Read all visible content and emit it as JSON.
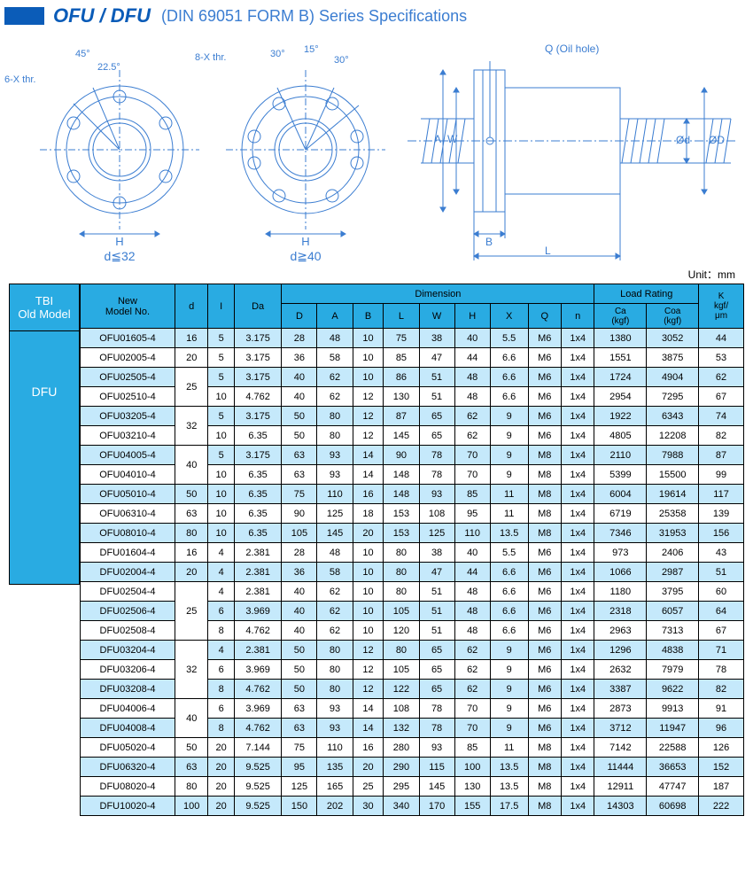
{
  "header": {
    "title_main": "OFU / DFU",
    "title_sub": "(DIN 69051 FORM B) Series Specifications"
  },
  "diagram_labels": {
    "left": "d≦32",
    "mid": "d≧40",
    "thr_left": "6-X thr.",
    "thr_mid": "8-X thr.",
    "oil": "Q (Oil hole)",
    "angles": {
      "a45": "45°",
      "a225": "22.5°",
      "a30l": "30°",
      "a15": "15°",
      "a30r": "30°"
    },
    "dims": {
      "H": "H",
      "A": "A",
      "W": "W",
      "B": "B",
      "L": "L",
      "od": "Ød",
      "oD": "ØD"
    }
  },
  "unit": "Unit：mm",
  "sidebar": {
    "head1": "TBI",
    "head2": "Old Model",
    "body": "DFU"
  },
  "columns": {
    "model": "New\nModel No.",
    "d": "d",
    "I": "I",
    "Da": "Da",
    "dim": "Dimension",
    "D": "D",
    "A": "A",
    "B": "B",
    "L": "L",
    "W": "W",
    "Hh": "H",
    "X": "X",
    "Q": "Q",
    "n": "n",
    "load": "Load Rating",
    "Ca": "Ca\n(kgf)",
    "Coa": "Coa\n(kgf)",
    "K": "K\nkgf/\nμm"
  },
  "rows": [
    {
      "g": "b",
      "dSpan": 0,
      "m": "OFU01605-4",
      "d": "16",
      "I": "5",
      "Da": "3.175",
      "D": "28",
      "A": "48",
      "B": "10",
      "L": "75",
      "W": "38",
      "H": "40",
      "X": "5.5",
      "Q": "M6",
      "n": "1x4",
      "Ca": "1380",
      "Coa": "3052",
      "K": "44"
    },
    {
      "g": "w",
      "dSpan": 0,
      "m": "OFU02005-4",
      "d": "20",
      "I": "5",
      "Da": "3.175",
      "D": "36",
      "A": "58",
      "B": "10",
      "L": "85",
      "W": "47",
      "H": "44",
      "X": "6.6",
      "Q": "M6",
      "n": "1x4",
      "Ca": "1551",
      "Coa": "3875",
      "K": "53"
    },
    {
      "g": "b",
      "dSpan": 2,
      "m": "OFU02505-4",
      "d": "25",
      "I": "5",
      "Da": "3.175",
      "D": "40",
      "A": "62",
      "B": "10",
      "L": "86",
      "W": "51",
      "H": "48",
      "X": "6.6",
      "Q": "M6",
      "n": "1x4",
      "Ca": "1724",
      "Coa": "4904",
      "K": "62"
    },
    {
      "g": "w",
      "dSpan": -1,
      "m": "OFU02510-4",
      "d": "",
      "I": "10",
      "Da": "4.762",
      "D": "40",
      "A": "62",
      "B": "12",
      "L": "130",
      "W": "51",
      "H": "48",
      "X": "6.6",
      "Q": "M6",
      "n": "1x4",
      "Ca": "2954",
      "Coa": "7295",
      "K": "67"
    },
    {
      "g": "b",
      "dSpan": 2,
      "m": "OFU03205-4",
      "d": "32",
      "I": "5",
      "Da": "3.175",
      "D": "50",
      "A": "80",
      "B": "12",
      "L": "87",
      "W": "65",
      "H": "62",
      "X": "9",
      "Q": "M6",
      "n": "1x4",
      "Ca": "1922",
      "Coa": "6343",
      "K": "74"
    },
    {
      "g": "w",
      "dSpan": -1,
      "m": "OFU03210-4",
      "d": "",
      "I": "10",
      "Da": "6.35",
      "D": "50",
      "A": "80",
      "B": "12",
      "L": "145",
      "W": "65",
      "H": "62",
      "X": "9",
      "Q": "M6",
      "n": "1x4",
      "Ca": "4805",
      "Coa": "12208",
      "K": "82"
    },
    {
      "g": "b",
      "dSpan": 2,
      "m": "OFU04005-4",
      "d": "40",
      "I": "5",
      "Da": "3.175",
      "D": "63",
      "A": "93",
      "B": "14",
      "L": "90",
      "W": "78",
      "H": "70",
      "X": "9",
      "Q": "M8",
      "n": "1x4",
      "Ca": "2110",
      "Coa": "7988",
      "K": "87"
    },
    {
      "g": "w",
      "dSpan": -1,
      "m": "OFU04010-4",
      "d": "",
      "I": "10",
      "Da": "6.35",
      "D": "63",
      "A": "93",
      "B": "14",
      "L": "148",
      "W": "78",
      "H": "70",
      "X": "9",
      "Q": "M8",
      "n": "1x4",
      "Ca": "5399",
      "Coa": "15500",
      "K": "99"
    },
    {
      "g": "b",
      "dSpan": 0,
      "m": "OFU05010-4",
      "d": "50",
      "I": "10",
      "Da": "6.35",
      "D": "75",
      "A": "110",
      "B": "16",
      "L": "148",
      "W": "93",
      "H": "85",
      "X": "11",
      "Q": "M8",
      "n": "1x4",
      "Ca": "6004",
      "Coa": "19614",
      "K": "117"
    },
    {
      "g": "w",
      "dSpan": 0,
      "m": "OFU06310-4",
      "d": "63",
      "I": "10",
      "Da": "6.35",
      "D": "90",
      "A": "125",
      "B": "18",
      "L": "153",
      "W": "108",
      "H": "95",
      "X": "11",
      "Q": "M8",
      "n": "1x4",
      "Ca": "6719",
      "Coa": "25358",
      "K": "139"
    },
    {
      "g": "b",
      "dSpan": 0,
      "m": "OFU08010-4",
      "d": "80",
      "I": "10",
      "Da": "6.35",
      "D": "105",
      "A": "145",
      "B": "20",
      "L": "153",
      "W": "125",
      "H": "110",
      "X": "13.5",
      "Q": "M8",
      "n": "1x4",
      "Ca": "7346",
      "Coa": "31953",
      "K": "156"
    },
    {
      "g": "w",
      "dSpan": 0,
      "m": "DFU01604-4",
      "d": "16",
      "I": "4",
      "Da": "2.381",
      "D": "28",
      "A": "48",
      "B": "10",
      "L": "80",
      "W": "38",
      "H": "40",
      "X": "5.5",
      "Q": "M6",
      "n": "1x4",
      "Ca": "973",
      "Coa": "2406",
      "K": "43"
    },
    {
      "g": "b",
      "dSpan": 0,
      "m": "DFU02004-4",
      "d": "20",
      "I": "4",
      "Da": "2.381",
      "D": "36",
      "A": "58",
      "B": "10",
      "L": "80",
      "W": "47",
      "H": "44",
      "X": "6.6",
      "Q": "M6",
      "n": "1x4",
      "Ca": "1066",
      "Coa": "2987",
      "K": "51"
    },
    {
      "g": "w",
      "dSpan": 3,
      "m": "DFU02504-4",
      "d": "25",
      "I": "4",
      "Da": "2.381",
      "D": "40",
      "A": "62",
      "B": "10",
      "L": "80",
      "W": "51",
      "H": "48",
      "X": "6.6",
      "Q": "M6",
      "n": "1x4",
      "Ca": "1180",
      "Coa": "3795",
      "K": "60"
    },
    {
      "g": "b",
      "dSpan": -1,
      "m": "DFU02506-4",
      "d": "",
      "I": "6",
      "Da": "3.969",
      "D": "40",
      "A": "62",
      "B": "10",
      "L": "105",
      "W": "51",
      "H": "48",
      "X": "6.6",
      "Q": "M6",
      "n": "1x4",
      "Ca": "2318",
      "Coa": "6057",
      "K": "64"
    },
    {
      "g": "w",
      "dSpan": -1,
      "m": "DFU02508-4",
      "d": "",
      "I": "8",
      "Da": "4.762",
      "D": "40",
      "A": "62",
      "B": "10",
      "L": "120",
      "W": "51",
      "H": "48",
      "X": "6.6",
      "Q": "M6",
      "n": "1x4",
      "Ca": "2963",
      "Coa": "7313",
      "K": "67"
    },
    {
      "g": "b",
      "dSpan": 3,
      "m": "DFU03204-4",
      "d": "32",
      "I": "4",
      "Da": "2.381",
      "D": "50",
      "A": "80",
      "B": "12",
      "L": "80",
      "W": "65",
      "H": "62",
      "X": "9",
      "Q": "M6",
      "n": "1x4",
      "Ca": "1296",
      "Coa": "4838",
      "K": "71"
    },
    {
      "g": "w",
      "dSpan": -1,
      "m": "DFU03206-4",
      "d": "",
      "I": "6",
      "Da": "3.969",
      "D": "50",
      "A": "80",
      "B": "12",
      "L": "105",
      "W": "65",
      "H": "62",
      "X": "9",
      "Q": "M6",
      "n": "1x4",
      "Ca": "2632",
      "Coa": "7979",
      "K": "78"
    },
    {
      "g": "b",
      "dSpan": -1,
      "m": "DFU03208-4",
      "d": "",
      "I": "8",
      "Da": "4.762",
      "D": "50",
      "A": "80",
      "B": "12",
      "L": "122",
      "W": "65",
      "H": "62",
      "X": "9",
      "Q": "M6",
      "n": "1x4",
      "Ca": "3387",
      "Coa": "9622",
      "K": "82"
    },
    {
      "g": "w",
      "dSpan": 2,
      "m": "DFU04006-4",
      "d": "40",
      "I": "6",
      "Da": "3.969",
      "D": "63",
      "A": "93",
      "B": "14",
      "L": "108",
      "W": "78",
      "H": "70",
      "X": "9",
      "Q": "M6",
      "n": "1x4",
      "Ca": "2873",
      "Coa": "9913",
      "K": "91"
    },
    {
      "g": "b",
      "dSpan": -1,
      "m": "DFU04008-4",
      "d": "",
      "I": "8",
      "Da": "4.762",
      "D": "63",
      "A": "93",
      "B": "14",
      "L": "132",
      "W": "78",
      "H": "70",
      "X": "9",
      "Q": "M6",
      "n": "1x4",
      "Ca": "3712",
      "Coa": "11947",
      "K": "96"
    },
    {
      "g": "w",
      "dSpan": 0,
      "m": "DFU05020-4",
      "d": "50",
      "I": "20",
      "Da": "7.144",
      "D": "75",
      "A": "110",
      "B": "16",
      "L": "280",
      "W": "93",
      "H": "85",
      "X": "11",
      "Q": "M8",
      "n": "1x4",
      "Ca": "7142",
      "Coa": "22588",
      "K": "126"
    },
    {
      "g": "b",
      "dSpan": 0,
      "m": "DFU06320-4",
      "d": "63",
      "I": "20",
      "Da": "9.525",
      "D": "95",
      "A": "135",
      "B": "20",
      "L": "290",
      "W": "115",
      "H": "100",
      "X": "13.5",
      "Q": "M8",
      "n": "1x4",
      "Ca": "11444",
      "Coa": "36653",
      "K": "152"
    },
    {
      "g": "w",
      "dSpan": 0,
      "m": "DFU08020-4",
      "d": "80",
      "I": "20",
      "Da": "9.525",
      "D": "125",
      "A": "165",
      "B": "25",
      "L": "295",
      "W": "145",
      "H": "130",
      "X": "13.5",
      "Q": "M8",
      "n": "1x4",
      "Ca": "12911",
      "Coa": "47747",
      "K": "187"
    },
    {
      "g": "b",
      "dSpan": 0,
      "m": "DFU10020-4",
      "d": "100",
      "I": "20",
      "Da": "9.525",
      "D": "150",
      "A": "202",
      "B": "30",
      "L": "340",
      "W": "170",
      "H": "155",
      "X": "17.5",
      "Q": "M8",
      "n": "1x4",
      "Ca": "14303",
      "Coa": "60698",
      "K": "222"
    }
  ]
}
